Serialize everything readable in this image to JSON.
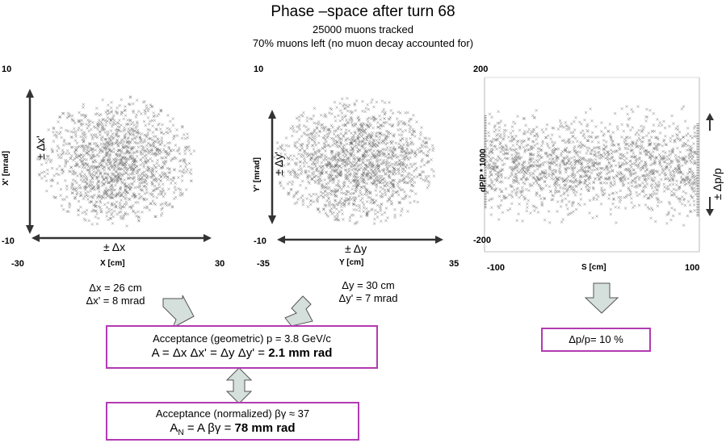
{
  "header": {
    "title": "Phase –space after  turn 68",
    "line1": "25000 muons tracked",
    "line2": "70% muons left  (no muon decay accounted for)"
  },
  "plot_x": {
    "y_top": "10",
    "y_bottom": "-10",
    "x_left": "-30",
    "x_right": "30",
    "xlabel": "X [cm]",
    "ylabel": "X' [mrad]",
    "v_symbol": "± Δx'",
    "h_symbol": "± Δx",
    "result1": "Δx = 26 cm",
    "result2": "Δx' = 8 mrad"
  },
  "plot_y": {
    "y_top": "10",
    "y_bottom": "-10",
    "x_left": "-35",
    "x_right": "35",
    "xlabel": "Y [cm]",
    "ylabel": "Y' [mrad]",
    "v_symbol": "± Δy'",
    "h_symbol": "± Δy",
    "result1": "Δy = 30 cm",
    "result2": "Δy'  =  7 mrad"
  },
  "plot_s": {
    "y_top": "200",
    "y_bottom": "-200",
    "x_left": "-100",
    "x_right": "100",
    "xlabel": "S [cm]",
    "ylabel": "dP/P * 1000",
    "v_symbol": "± Δp/p",
    "result": "Δp/p= 10 %"
  },
  "box_geometric": {
    "line1": "Acceptance (geometric)  p = 3.8 GeV/c",
    "line2_prefix": "A = Δx Δx' = Δy Δy' = ",
    "line2_value": "2.1 mm rad"
  },
  "box_normalized": {
    "line1": "Acceptance (normalized)  βγ ≈ 37",
    "line2_a": "A",
    "line2_sub": "N",
    "line2_mid": " = A βγ = ",
    "line2_value": "78 mm rad"
  },
  "colors": {
    "box_border": "#b23ab2",
    "arrow_fill": "#d5dfdc",
    "scatter": "#777777"
  }
}
